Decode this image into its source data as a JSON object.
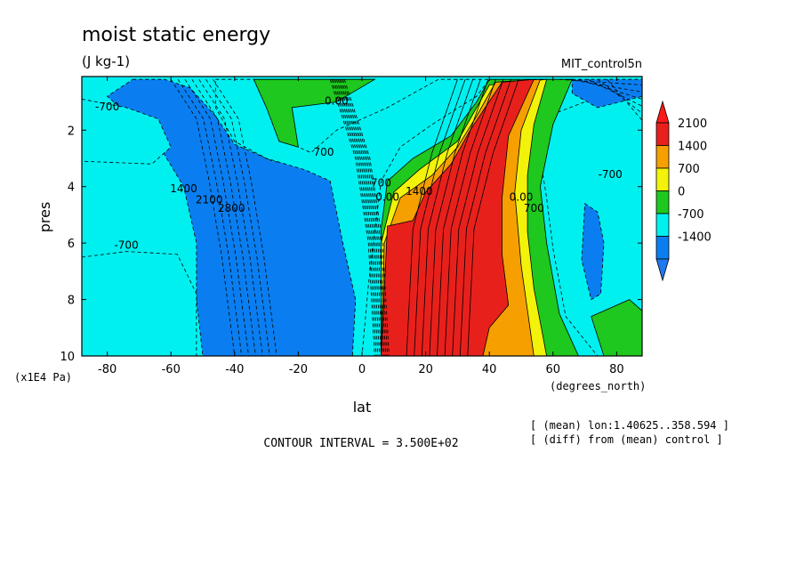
{
  "chart_data": {
    "type": "heatmap",
    "title": "moist static energy",
    "units_label": "(J kg-1)",
    "dataset_label": "MIT_control5n",
    "xlabel": "lat",
    "x_units": "(degrees_north)",
    "ylabel": "pres",
    "y_units": "(x1E4 Pa)",
    "xlim": [
      -88,
      88
    ],
    "ylim": [
      10,
      0.1
    ],
    "y_inverted": true,
    "x_ticks": [
      -80,
      -60,
      -40,
      -20,
      0,
      20,
      40,
      60,
      80
    ],
    "y_ticks": [
      2,
      4,
      6,
      8,
      10
    ],
    "x_tick_labels": [
      "-80",
      "-60",
      "-40",
      "-20",
      "0",
      "20",
      "40",
      "60",
      "80"
    ],
    "y_tick_labels": [
      "2",
      "4",
      "6",
      "8",
      "10"
    ],
    "contour_interval_text": "CONTOUR INTERVAL = 3.500E+02",
    "notes": [
      "[ (mean) lon:1.40625..358.594 ]",
      "[ (diff) from (mean) control ]"
    ],
    "colorbar": {
      "levels": [
        2100,
        1400,
        700,
        0,
        -700,
        -1400
      ],
      "labels": [
        "2100",
        "1400",
        "700",
        "0",
        "-700",
        "-1400"
      ],
      "colors": [
        "#e8201c",
        "#f5a000",
        "#f2f20a",
        "#1ec81e",
        "#00f0f0",
        "#0a7ef0"
      ],
      "top_arrow_color": "#ff1a1a",
      "bottom_arrow_color": "#1e78f0"
    },
    "contour_labels": [
      "-700",
      "0.00",
      "1400",
      "2100",
      "2800",
      "-700",
      "700",
      "1400",
      "0.00",
      "700",
      "-700",
      "0.00",
      "700"
    ],
    "bands": [
      {
        "name": "deep-blue-south",
        "value": -1400,
        "color": "#0a7ef0",
        "points": [
          [
            -72,
            0.2
          ],
          [
            -62,
            0.2
          ],
          [
            -54,
            0.5
          ],
          [
            -46,
            1.5
          ],
          [
            -40,
            2.5
          ],
          [
            -28,
            3.1
          ],
          [
            -16,
            3.3
          ],
          [
            -10,
            3.6
          ],
          [
            -6,
            6
          ],
          [
            -2,
            8
          ],
          [
            -3,
            10
          ],
          [
            -50,
            10
          ],
          [
            -52,
            8
          ],
          [
            -52,
            6
          ],
          [
            -56,
            4
          ],
          [
            -64,
            2.5
          ],
          [
            -74,
            1.4
          ],
          [
            -80,
            0.8
          ]
        ]
      },
      {
        "name": "light-blue-south-upper",
        "value": -700,
        "color": "#00f0f0",
        "points": [
          [
            -88,
            0.9
          ],
          [
            -74,
            1.2
          ],
          [
            -64,
            1.6
          ],
          [
            -60,
            2.6
          ],
          [
            -66,
            3.2
          ],
          [
            -88,
            3.1
          ]
        ]
      },
      {
        "name": "light-blue-south-lower",
        "value": -700,
        "color": "#00f0f0",
        "points": [
          [
            -88,
            6.5
          ],
          [
            -74,
            6.3
          ],
          [
            -58,
            6.4
          ],
          [
            -52,
            7.8
          ],
          [
            -52,
            10
          ],
          [
            -88,
            10
          ]
        ]
      },
      {
        "name": "light-blue-upper-wedge",
        "value": -700,
        "color": "#00f0f0",
        "points": [
          [
            -46,
            0.2
          ],
          [
            -34,
            0.2
          ],
          [
            -30,
            1.2
          ],
          [
            -24,
            2.4
          ],
          [
            -16,
            2.8
          ],
          [
            -8,
            2.0
          ],
          [
            8,
            1.2
          ],
          [
            24,
            0.2
          ],
          [
            40,
            0.2
          ],
          [
            36,
            0.8
          ],
          [
            22,
            1.8
          ],
          [
            12,
            2.6
          ],
          [
            6,
            3.8
          ],
          [
            4,
            5.6
          ],
          [
            2,
            7.5
          ],
          [
            0,
            10
          ],
          [
            -3,
            10
          ],
          [
            -2,
            8
          ],
          [
            -6,
            6
          ],
          [
            -10,
            3.8
          ],
          [
            -18,
            3.4
          ],
          [
            -30,
            3.0
          ],
          [
            -40,
            2.4
          ],
          [
            -46,
            1.2
          ]
        ]
      },
      {
        "name": "green-upper",
        "value": 0,
        "color": "#1ec81e",
        "points": [
          [
            -34,
            0.2
          ],
          [
            4,
            0.2
          ],
          [
            -8,
            1.0
          ],
          [
            -22,
            1.2
          ],
          [
            -20,
            2.6
          ],
          [
            -26,
            2.4
          ],
          [
            -30,
            1.2
          ]
        ]
      },
      {
        "name": "light-blue-east",
        "value": -700,
        "color": "#00f0f0",
        "points": [
          [
            56,
            1.6
          ],
          [
            70,
            1.0
          ],
          [
            88,
            0.5
          ],
          [
            88,
            10
          ],
          [
            74,
            10
          ],
          [
            64,
            8.6
          ],
          [
            60,
            6.2
          ],
          [
            58,
            4.4
          ],
          [
            56,
            3
          ]
        ]
      },
      {
        "name": "blue-east-top",
        "value": -1400,
        "color": "#0a7ef0",
        "points": [
          [
            66,
            0.2
          ],
          [
            88,
            0.2
          ],
          [
            88,
            0.8
          ],
          [
            74,
            1.2
          ],
          [
            66,
            0.7
          ]
        ]
      },
      {
        "name": "green-east",
        "value": 0,
        "color": "#1ec81e",
        "points": [
          [
            40,
            0.2
          ],
          [
            66,
            0.2
          ],
          [
            60,
            1.8
          ],
          [
            56,
            4
          ],
          [
            58,
            6
          ],
          [
            62,
            8.5
          ],
          [
            68,
            10
          ],
          [
            6,
            10
          ],
          [
            6,
            5.5
          ],
          [
            8,
            3.8
          ],
          [
            16,
            3.0
          ],
          [
            28,
            2.2
          ],
          [
            36,
            1.0
          ]
        ]
      },
      {
        "name": "green-east-pool",
        "value": 0,
        "color": "#1ec81e",
        "points": [
          [
            72,
            8.6
          ],
          [
            84,
            8.0
          ],
          [
            88,
            8.4
          ],
          [
            88,
            10
          ],
          [
            76,
            10
          ]
        ]
      },
      {
        "name": "blue-east-lens",
        "value": -1400,
        "color": "#0a7ef0",
        "points": [
          [
            70,
            4.6
          ],
          [
            74,
            4.9
          ],
          [
            76,
            6
          ],
          [
            75,
            7.8
          ],
          [
            72,
            8.0
          ],
          [
            69,
            6.6
          ]
        ]
      },
      {
        "name": "yellow-east",
        "value": 700,
        "color": "#f2f20a",
        "points": [
          [
            40,
            0.4
          ],
          [
            58,
            0.2
          ],
          [
            54,
            1.8
          ],
          [
            52,
            3.6
          ],
          [
            52,
            5.6
          ],
          [
            54,
            7.6
          ],
          [
            58,
            10
          ],
          [
            6,
            10
          ],
          [
            6,
            6
          ],
          [
            10,
            4.2
          ],
          [
            18,
            3.4
          ],
          [
            30,
            2.4
          ],
          [
            36,
            1.2
          ]
        ]
      },
      {
        "name": "orange-east",
        "value": 1400,
        "color": "#f5a000",
        "points": [
          [
            42,
            0.3
          ],
          [
            56,
            0.2
          ],
          [
            50,
            2.0
          ],
          [
            48,
            4.2
          ],
          [
            50,
            6.8
          ],
          [
            54,
            10
          ],
          [
            6,
            10
          ],
          [
            7,
            6
          ],
          [
            12,
            4.4
          ],
          [
            22,
            3.6
          ],
          [
            30,
            2.6
          ],
          [
            36,
            1.5
          ]
        ]
      },
      {
        "name": "red-east",
        "value": 2100,
        "color": "#e8201c",
        "points": [
          [
            44,
            0.3
          ],
          [
            54,
            0.2
          ],
          [
            46,
            2.2
          ],
          [
            44,
            4.4
          ],
          [
            44,
            6.4
          ],
          [
            46,
            8.2
          ],
          [
            40,
            9.0
          ],
          [
            38,
            10
          ],
          [
            6,
            10
          ],
          [
            8,
            5.4
          ],
          [
            16,
            5.2
          ],
          [
            20,
            4.2
          ],
          [
            28,
            3.2
          ],
          [
            34,
            2.0
          ]
        ]
      }
    ]
  }
}
